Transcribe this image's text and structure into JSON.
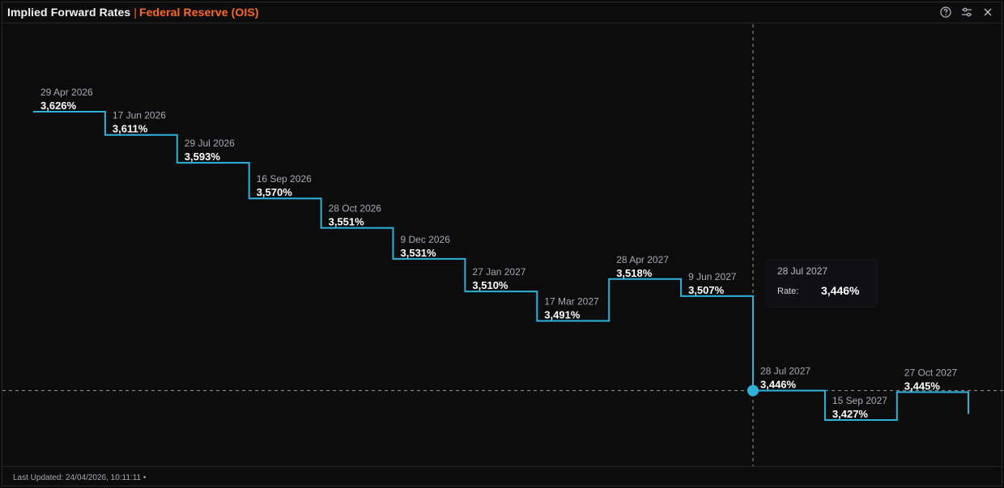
{
  "header": {
    "title": "Implied Forward Rates",
    "separator": "|",
    "subtitle": "Federal Reserve (OIS)",
    "icons": [
      "help-icon",
      "settings-sliders-icon",
      "close-icon"
    ],
    "accent_color": "#ff6a1a"
  },
  "footer": {
    "last_updated": "Last Updated: 24/04/2026, 10:11:11 •"
  },
  "tooltip": {
    "date": "28 Jul 2027",
    "rate_label": "Rate:",
    "rate_value": "3,446%"
  },
  "chart_data": {
    "type": "line",
    "step": true,
    "title": "",
    "xlabel": "",
    "ylabel": "",
    "line_color": "#2bb3dd",
    "grid": false,
    "crosshair_at": "28 Jul 2027",
    "points": [
      {
        "date": "29 Apr 2026",
        "label": "3,626%",
        "value": 3.626
      },
      {
        "date": "17 Jun 2026",
        "label": "3,611%",
        "value": 3.611
      },
      {
        "date": "29 Jul 2026",
        "label": "3,593%",
        "value": 3.593
      },
      {
        "date": "16 Sep 2026",
        "label": "3,570%",
        "value": 3.57
      },
      {
        "date": "28 Oct 2026",
        "label": "3,551%",
        "value": 3.551
      },
      {
        "date": "9 Dec 2026",
        "label": "3,531%",
        "value": 3.531
      },
      {
        "date": "27 Jan 2027",
        "label": "3,510%",
        "value": 3.51
      },
      {
        "date": "17 Mar 2027",
        "label": "3,491%",
        "value": 3.491
      },
      {
        "date": "28 Apr 2027",
        "label": "3,518%",
        "value": 3.518
      },
      {
        "date": "9 Jun 2027",
        "label": "3,507%",
        "value": 3.507
      },
      {
        "date": "28 Jul 2027",
        "label": "3,446%",
        "value": 3.446
      },
      {
        "date": "15 Sep 2027",
        "label": "3,427%",
        "value": 3.427
      },
      {
        "date": "27 Oct 2027",
        "label": "3,445%",
        "value": 3.445
      }
    ]
  }
}
